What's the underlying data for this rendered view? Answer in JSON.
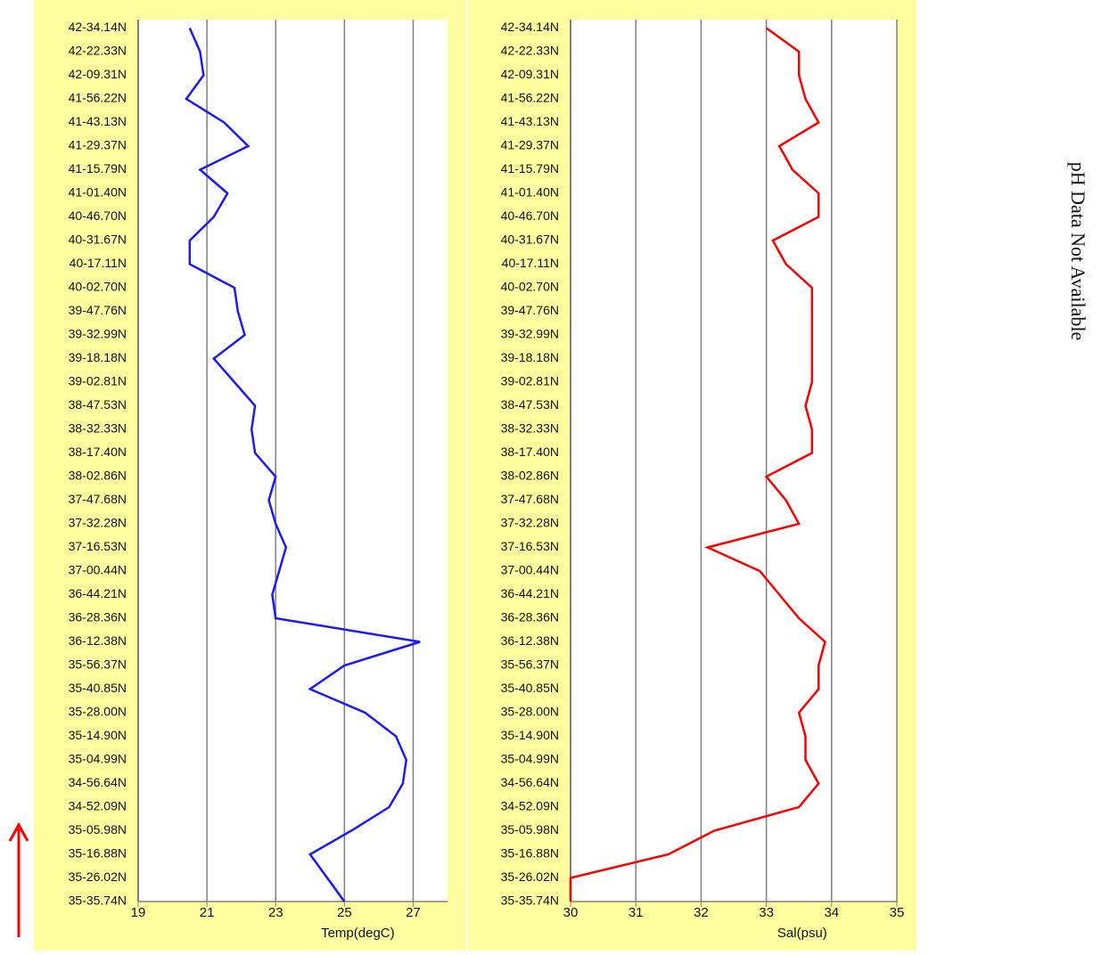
{
  "chart_data": [
    {
      "type": "line",
      "x_label": "Temp(degC)",
      "xlim": [
        19,
        28
      ],
      "xticks": [
        19,
        21,
        23,
        25,
        27
      ],
      "grid": true,
      "categories": [
        "42-34.14N",
        "42-22.33N",
        "42-09.31N",
        "41-56.22N",
        "41-43.13N",
        "41-29.37N",
        "41-15.79N",
        "41-01.40N",
        "40-46.70N",
        "40-31.67N",
        "40-17.11N",
        "40-02.70N",
        "39-47.76N",
        "39-32.99N",
        "39-18.18N",
        "39-02.81N",
        "38-47.53N",
        "38-32.33N",
        "38-17.40N",
        "38-02.86N",
        "37-47.68N",
        "37-32.28N",
        "37-16.53N",
        "37-00.44N",
        "36-44.21N",
        "36-28.36N",
        "36-12.38N",
        "35-56.37N",
        "35-40.85N",
        "35-28.00N",
        "35-14.90N",
        "35-04.99N",
        "34-56.64N",
        "34-52.09N",
        "35-05.98N",
        "35-16.88N",
        "35-26.02N",
        "35-35.74N"
      ],
      "series": [
        {
          "name": "Temp",
          "color": "#1a1aff",
          "values": [
            20.5,
            20.8,
            20.9,
            20.4,
            21.5,
            22.2,
            20.8,
            21.6,
            21.2,
            20.5,
            20.5,
            21.8,
            21.9,
            22.1,
            21.2,
            21.8,
            22.4,
            22.3,
            22.4,
            23.0,
            22.8,
            23.0,
            23.3,
            23.1,
            22.9,
            23.0,
            27.2,
            25.0,
            24.0,
            25.6,
            26.5,
            26.8,
            26.7,
            26.3,
            25.2,
            24.0,
            24.5,
            25.0
          ]
        }
      ]
    },
    {
      "type": "line",
      "x_label": "Sal(psu)",
      "xlim": [
        30,
        35
      ],
      "xticks": [
        30,
        31,
        32,
        33,
        34,
        35
      ],
      "grid": true,
      "categories": [
        "42-34.14N",
        "42-22.33N",
        "42-09.31N",
        "41-56.22N",
        "41-43.13N",
        "41-29.37N",
        "41-15.79N",
        "41-01.40N",
        "40-46.70N",
        "40-31.67N",
        "40-17.11N",
        "40-02.70N",
        "39-47.76N",
        "39-32.99N",
        "39-18.18N",
        "39-02.81N",
        "38-47.53N",
        "38-32.33N",
        "38-17.40N",
        "38-02.86N",
        "37-47.68N",
        "37-32.28N",
        "37-16.53N",
        "37-00.44N",
        "36-44.21N",
        "36-28.36N",
        "36-12.38N",
        "35-56.37N",
        "35-40.85N",
        "35-28.00N",
        "35-14.90N",
        "35-04.99N",
        "34-56.64N",
        "34-52.09N",
        "35-05.98N",
        "35-16.88N",
        "35-26.02N",
        "35-35.74N"
      ],
      "series": [
        {
          "name": "Sal",
          "color": "#ff0000",
          "values": [
            33.0,
            33.5,
            33.5,
            33.6,
            33.8,
            33.2,
            33.4,
            33.8,
            33.8,
            33.1,
            33.3,
            33.7,
            33.7,
            33.7,
            33.7,
            33.7,
            33.6,
            33.7,
            33.7,
            33.0,
            33.3,
            33.5,
            32.1,
            32.9,
            33.2,
            33.5,
            33.9,
            33.8,
            33.8,
            33.5,
            33.6,
            33.6,
            33.8,
            33.5,
            32.2,
            31.5,
            30.0,
            30.0
          ]
        }
      ]
    }
  ],
  "annotation": "pH Data Not Available"
}
